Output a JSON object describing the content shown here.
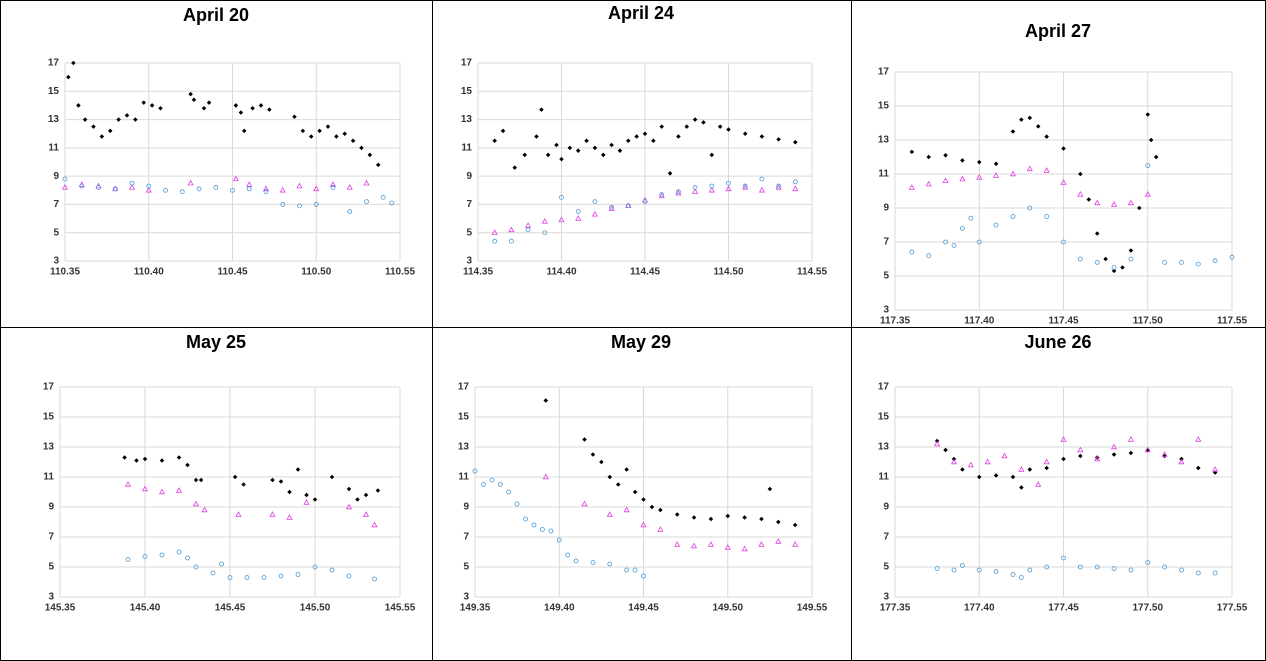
{
  "chart_data": [
    {
      "type": "scatter",
      "title": "April 20",
      "xlim": [
        110.35,
        110.55
      ],
      "ylim": [
        3,
        17
      ],
      "xticks": [
        110.35,
        {
          "value": 110.4,
          "label": "110.40"
        },
        110.45,
        {
          "value": 110.5,
          "label": "110.50"
        },
        110.55
      ],
      "yticks": [
        3,
        5,
        7,
        9,
        11,
        13,
        15,
        17
      ],
      "grid": true,
      "series": [
        {
          "color": "#000000",
          "marker": "diamond",
          "x": [
            110.352,
            110.355,
            110.358,
            110.362,
            110.367,
            110.372,
            110.377,
            110.382,
            110.387,
            110.392,
            110.397,
            110.402,
            110.407,
            110.425,
            110.427,
            110.433,
            110.436,
            110.452,
            110.455,
            110.457,
            110.462,
            110.467,
            110.472,
            110.487,
            110.492,
            110.497,
            110.502,
            110.507,
            110.512,
            110.517,
            110.522,
            110.527,
            110.532,
            110.537
          ],
          "values": [
            16,
            17,
            14,
            13,
            12.5,
            11.8,
            12.2,
            13,
            13.3,
            13,
            14.2,
            14,
            13.8,
            14.8,
            14.4,
            13.8,
            14.2,
            14,
            13.5,
            12.2,
            13.8,
            14,
            13.7,
            13.2,
            12.2,
            11.8,
            12.2,
            12.5,
            11.8,
            12,
            11.5,
            11,
            10.5,
            9.8
          ]
        },
        {
          "color": "#e040e0",
          "marker": "triangle",
          "x": [
            110.35,
            110.36,
            110.37,
            110.38,
            110.39,
            110.4,
            110.425,
            110.452,
            110.46,
            110.47,
            110.48,
            110.49,
            110.5,
            110.51,
            110.52,
            110.53
          ],
          "values": [
            8.2,
            8.4,
            8.3,
            8.1,
            8.2,
            8,
            8.5,
            8.8,
            8.4,
            8.1,
            8,
            8.3,
            8.1,
            8.4,
            8.2,
            8.5
          ]
        },
        {
          "color": "#4a9ad4",
          "marker": "circle",
          "x": [
            110.35,
            110.36,
            110.37,
            110.38,
            110.39,
            110.4,
            110.41,
            110.42,
            110.43,
            110.44,
            110.45,
            110.46,
            110.47,
            110.48,
            110.49,
            110.5,
            110.51,
            110.52,
            110.53,
            110.54,
            110.545
          ],
          "values": [
            8.8,
            8.3,
            8.2,
            8.1,
            8.5,
            8.3,
            8,
            7.9,
            8.1,
            8.2,
            8,
            8.1,
            7.9,
            7,
            6.9,
            7,
            8.2,
            6.5,
            7.2,
            7.5,
            7.1
          ]
        }
      ]
    },
    {
      "type": "scatter",
      "title": "April 24",
      "xlim": [
        114.35,
        114.55
      ],
      "ylim": [
        3,
        17
      ],
      "xticks": [
        114.35,
        {
          "value": 114.4,
          "label": "114.40"
        },
        114.45,
        {
          "value": 114.5,
          "label": "114.50"
        },
        114.55
      ],
      "yticks": [
        3,
        5,
        7,
        9,
        11,
        13,
        15,
        17
      ],
      "grid": true,
      "series": [
        {
          "color": "#000000",
          "marker": "diamond",
          "x": [
            114.36,
            114.365,
            114.372,
            114.378,
            114.385,
            114.388,
            114.392,
            114.397,
            114.4,
            114.405,
            114.41,
            114.415,
            114.42,
            114.425,
            114.43,
            114.435,
            114.44,
            114.445,
            114.45,
            114.455,
            114.46,
            114.465,
            114.47,
            114.475,
            114.48,
            114.485,
            114.49,
            114.495,
            114.5,
            114.51,
            114.52,
            114.53,
            114.54
          ],
          "values": [
            11.5,
            12.2,
            9.6,
            10.5,
            11.8,
            13.7,
            10.5,
            11.2,
            10.2,
            11,
            10.8,
            11.5,
            11,
            10.5,
            11.2,
            10.8,
            11.5,
            11.8,
            12,
            11.5,
            12.5,
            9.2,
            11.8,
            12.5,
            13,
            12.8,
            10.5,
            12.5,
            12.3,
            12,
            11.8,
            11.6,
            11.4
          ]
        },
        {
          "color": "#e040e0",
          "marker": "triangle",
          "x": [
            114.36,
            114.37,
            114.38,
            114.39,
            114.4,
            114.41,
            114.42,
            114.43,
            114.44,
            114.45,
            114.46,
            114.47,
            114.48,
            114.49,
            114.5,
            114.51,
            114.52,
            114.53,
            114.54
          ],
          "values": [
            5,
            5.2,
            5.5,
            5.8,
            5.9,
            6,
            6.3,
            6.7,
            6.9,
            7.3,
            7.6,
            7.8,
            7.9,
            8,
            8.1,
            8.2,
            8,
            8.2,
            8.1
          ]
        },
        {
          "color": "#4a9ad4",
          "marker": "circle",
          "x": [
            114.36,
            114.37,
            114.38,
            114.39,
            114.4,
            114.41,
            114.42,
            114.43,
            114.44,
            114.45,
            114.46,
            114.47,
            114.48,
            114.49,
            114.5,
            114.51,
            114.52,
            114.53,
            114.54
          ],
          "values": [
            4.4,
            4.4,
            5.2,
            5,
            7.5,
            6.5,
            7.2,
            6.8,
            6.9,
            7.2,
            7.7,
            7.9,
            8.2,
            8.3,
            8.5,
            8.3,
            8.8,
            8.3,
            8.6
          ]
        }
      ]
    },
    {
      "type": "scatter",
      "title": "April 27",
      "xlim": [
        117.35,
        117.55
      ],
      "ylim": [
        3,
        17
      ],
      "xticks": [
        117.35,
        {
          "value": 117.4,
          "label": "117.40"
        },
        117.45,
        {
          "value": 117.5,
          "label": "117.50"
        },
        117.55
      ],
      "yticks": [
        3,
        5,
        7,
        9,
        11,
        13,
        15,
        17
      ],
      "grid": true,
      "series": [
        {
          "color": "#000000",
          "marker": "diamond",
          "x": [
            117.36,
            117.37,
            117.38,
            117.39,
            117.4,
            117.41,
            117.42,
            117.425,
            117.43,
            117.435,
            117.44,
            117.45,
            117.46,
            117.465,
            117.47,
            117.475,
            117.48,
            117.485,
            117.49,
            117.495,
            117.5,
            117.502,
            117.505
          ],
          "values": [
            12.3,
            12,
            12.1,
            11.8,
            11.7,
            11.6,
            13.5,
            14.2,
            14.3,
            13.8,
            13.2,
            12.5,
            11,
            9.5,
            7.5,
            6,
            5.3,
            5.5,
            6.5,
            9,
            14.5,
            13,
            12
          ]
        },
        {
          "color": "#e040e0",
          "marker": "triangle",
          "x": [
            117.36,
            117.37,
            117.38,
            117.39,
            117.4,
            117.41,
            117.42,
            117.43,
            117.44,
            117.45,
            117.46,
            117.47,
            117.48,
            117.49,
            117.5
          ],
          "values": [
            10.2,
            10.4,
            10.6,
            10.7,
            10.8,
            10.9,
            11,
            11.3,
            11.2,
            10.5,
            9.8,
            9.3,
            9.2,
            9.3,
            9.8
          ]
        },
        {
          "color": "#4a9ad4",
          "marker": "circle",
          "x": [
            117.36,
            117.37,
            117.38,
            117.385,
            117.39,
            117.395,
            117.4,
            117.41,
            117.42,
            117.43,
            117.44,
            117.45,
            117.46,
            117.47,
            117.48,
            117.49,
            117.5,
            117.51,
            117.52,
            117.53,
            117.54,
            117.55
          ],
          "values": [
            6.4,
            6.2,
            7,
            6.8,
            7.8,
            8.4,
            7,
            8,
            8.5,
            9,
            8.5,
            7,
            6,
            5.8,
            5.5,
            6,
            11.5,
            5.8,
            5.8,
            5.7,
            5.9,
            6.1
          ]
        }
      ]
    },
    {
      "type": "scatter",
      "title": "May 25",
      "xlim": [
        145.35,
        145.55
      ],
      "ylim": [
        3,
        17
      ],
      "xticks": [
        145.35,
        {
          "value": 145.4,
          "label": "145.40"
        },
        145.45,
        {
          "value": 145.5,
          "label": "145.50"
        },
        145.55
      ],
      "yticks": [
        3,
        5,
        7,
        9,
        11,
        13,
        15,
        17
      ],
      "grid": true,
      "series": [
        {
          "color": "#000000",
          "marker": "diamond",
          "x": [
            145.388,
            145.395,
            145.4,
            145.41,
            145.42,
            145.425,
            145.43,
            145.433,
            145.453,
            145.458,
            145.475,
            145.48,
            145.485,
            145.49,
            145.495,
            145.5,
            145.51,
            145.52,
            145.525,
            145.53,
            145.537
          ],
          "values": [
            12.3,
            12.1,
            12.2,
            12.1,
            12.3,
            11.8,
            10.8,
            10.8,
            11,
            10.5,
            10.8,
            10.7,
            10,
            11.5,
            9.8,
            9.5,
            11,
            10.2,
            9.5,
            9.8,
            10.1
          ]
        },
        {
          "color": "#e040e0",
          "marker": "triangle",
          "x": [
            145.39,
            145.4,
            145.41,
            145.42,
            145.43,
            145.435,
            145.455,
            145.475,
            145.485,
            145.495,
            145.52,
            145.53,
            145.535
          ],
          "values": [
            10.5,
            10.2,
            10,
            10.1,
            9.2,
            8.8,
            8.5,
            8.5,
            8.3,
            9.3,
            9,
            8.5,
            7.8
          ]
        },
        {
          "color": "#4a9ad4",
          "marker": "circle",
          "x": [
            145.39,
            145.4,
            145.41,
            145.42,
            145.425,
            145.43,
            145.44,
            145.445,
            145.45,
            145.46,
            145.47,
            145.48,
            145.49,
            145.5,
            145.51,
            145.52,
            145.535
          ],
          "values": [
            5.5,
            5.7,
            5.8,
            6,
            5.6,
            5,
            4.6,
            5.2,
            4.3,
            4.3,
            4.3,
            4.4,
            4.5,
            5,
            4.8,
            4.4,
            4.2
          ]
        }
      ]
    },
    {
      "type": "scatter",
      "title": "May 29",
      "xlim": [
        149.35,
        149.55
      ],
      "ylim": [
        3,
        17
      ],
      "xticks": [
        149.35,
        {
          "value": 149.4,
          "label": "149.40"
        },
        149.45,
        {
          "value": 149.5,
          "label": "149.50"
        },
        149.55
      ],
      "yticks": [
        3,
        5,
        7,
        9,
        11,
        13,
        15,
        17
      ],
      "grid": true,
      "series": [
        {
          "color": "#000000",
          "marker": "diamond",
          "x": [
            149.392,
            149.415,
            149.42,
            149.425,
            149.43,
            149.435,
            149.44,
            149.445,
            149.45,
            149.455,
            149.46,
            149.47,
            149.48,
            149.49,
            149.5,
            149.51,
            149.52,
            149.525,
            149.53,
            149.54
          ],
          "values": [
            16.1,
            13.5,
            12.5,
            12,
            11,
            10.5,
            11.5,
            10,
            9.5,
            9,
            8.8,
            8.5,
            8.3,
            8.2,
            8.4,
            8.3,
            8.2,
            10.2,
            8,
            7.8
          ]
        },
        {
          "color": "#e040e0",
          "marker": "triangle",
          "x": [
            149.392,
            149.415,
            149.43,
            149.44,
            149.45,
            149.46,
            149.47,
            149.48,
            149.49,
            149.5,
            149.51,
            149.52,
            149.53,
            149.54
          ],
          "values": [
            11,
            9.2,
            8.5,
            8.8,
            7.8,
            7.5,
            6.5,
            6.4,
            6.5,
            6.3,
            6.2,
            6.5,
            6.7,
            6.5
          ]
        },
        {
          "color": "#4a9ad4",
          "marker": "circle",
          "x": [
            149.35,
            149.355,
            149.36,
            149.365,
            149.37,
            149.375,
            149.38,
            149.385,
            149.39,
            149.395,
            149.4,
            149.405,
            149.41,
            149.42,
            149.43,
            149.44,
            149.445,
            149.45
          ],
          "values": [
            11.4,
            10.5,
            10.8,
            10.5,
            10,
            9.2,
            8.2,
            7.8,
            7.5,
            7.4,
            6.8,
            5.8,
            5.4,
            5.3,
            5.2,
            4.8,
            4.8,
            4.4
          ]
        }
      ]
    },
    {
      "type": "scatter",
      "title": "June 26",
      "xlim": [
        177.35,
        177.55
      ],
      "ylim": [
        3,
        17
      ],
      "xticks": [
        177.35,
        {
          "value": 177.4,
          "label": "177.40"
        },
        177.45,
        {
          "value": 177.5,
          "label": "177.50"
        },
        177.55
      ],
      "yticks": [
        3,
        5,
        7,
        9,
        11,
        13,
        15,
        17
      ],
      "grid": true,
      "series": [
        {
          "color": "#000000",
          "marker": "diamond",
          "x": [
            177.375,
            177.38,
            177.385,
            177.39,
            177.4,
            177.41,
            177.42,
            177.425,
            177.43,
            177.44,
            177.45,
            177.46,
            177.47,
            177.48,
            177.49,
            177.5,
            177.51,
            177.52,
            177.53,
            177.54
          ],
          "values": [
            13.4,
            12.8,
            12.2,
            11.5,
            11,
            11.1,
            11,
            10.3,
            11.5,
            11.6,
            12.2,
            12.4,
            12.3,
            12.5,
            12.6,
            12.8,
            12.4,
            12.2,
            11.6,
            11.3
          ]
        },
        {
          "color": "#e040e0",
          "marker": "triangle",
          "x": [
            177.375,
            177.385,
            177.395,
            177.405,
            177.415,
            177.425,
            177.435,
            177.44,
            177.45,
            177.46,
            177.47,
            177.48,
            177.49,
            177.5,
            177.51,
            177.52,
            177.53,
            177.54
          ],
          "values": [
            13.2,
            12,
            11.8,
            12,
            12.4,
            11.5,
            10.5,
            12,
            13.5,
            12.8,
            12.2,
            13,
            13.5,
            12.8,
            12.5,
            12,
            13.5,
            11.5
          ]
        },
        {
          "color": "#4a9ad4",
          "marker": "circle",
          "x": [
            177.375,
            177.385,
            177.39,
            177.4,
            177.41,
            177.42,
            177.425,
            177.43,
            177.44,
            177.45,
            177.46,
            177.47,
            177.48,
            177.49,
            177.5,
            177.51,
            177.52,
            177.53,
            177.54
          ],
          "values": [
            4.9,
            4.8,
            5.1,
            4.8,
            4.7,
            4.5,
            4.3,
            4.8,
            5,
            5.6,
            5,
            5,
            4.9,
            4.8,
            5.3,
            5,
            4.8,
            4.6,
            4.6
          ]
        }
      ]
    }
  ]
}
